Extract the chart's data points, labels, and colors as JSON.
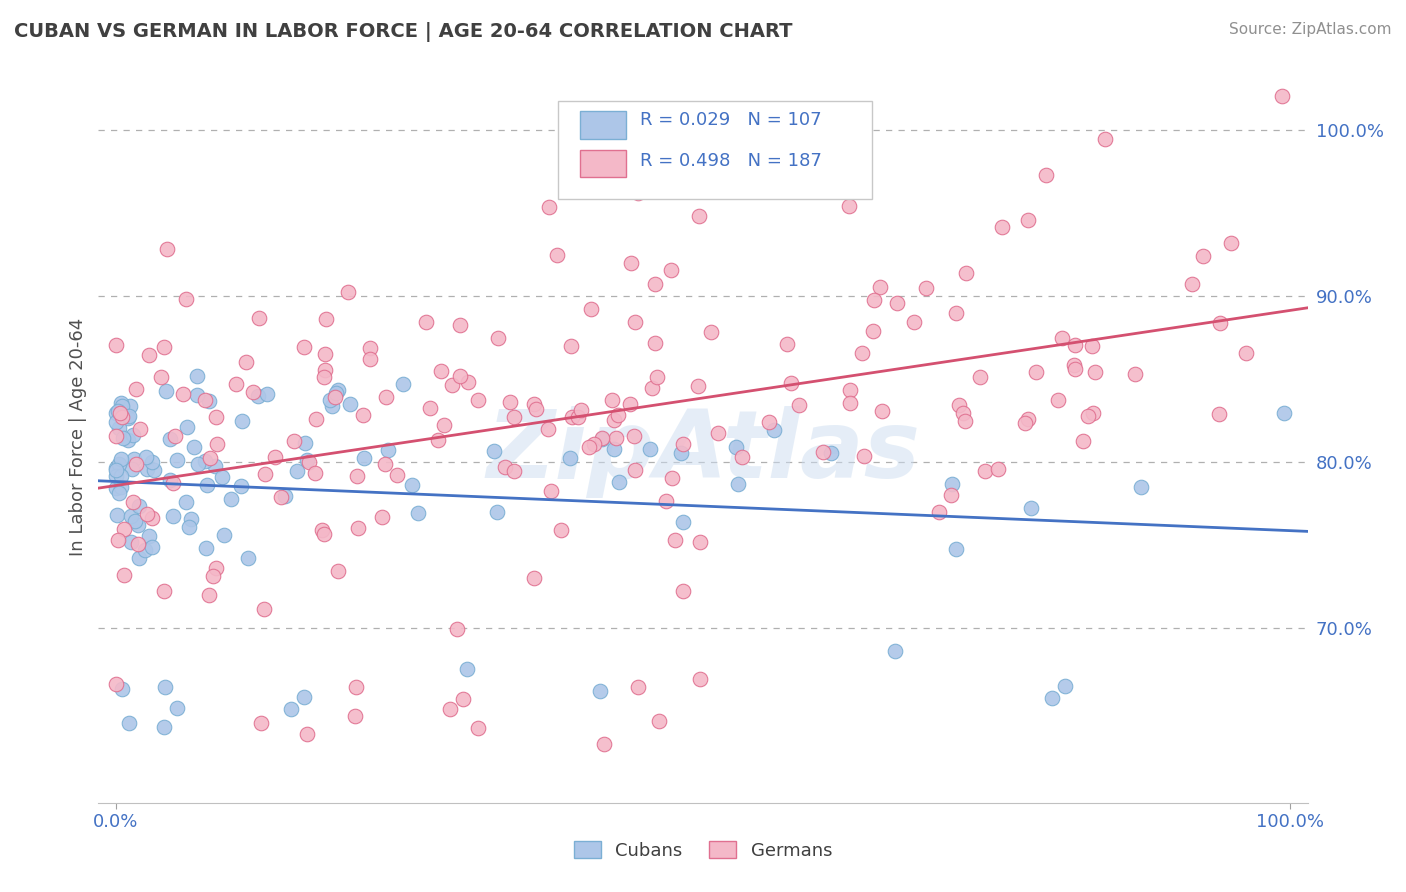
{
  "title": "CUBAN VS GERMAN IN LABOR FORCE | AGE 20-64 CORRELATION CHART",
  "source": "Source: ZipAtlas.com",
  "ylabel": "In Labor Force | Age 20-64",
  "cuban_color": "#adc6e8",
  "cuban_edge_color": "#7bafd4",
  "german_color": "#f4b8c8",
  "german_edge_color": "#e07090",
  "cuban_line_color": "#4472c4",
  "german_line_color": "#d45070",
  "title_color": "#404040",
  "source_color": "#909090",
  "cuban_R": 0.029,
  "cuban_N": 107,
  "german_R": 0.498,
  "german_N": 187,
  "background_color": "#ffffff",
  "grid_color": "#b0b0b0",
  "watermark": "ZipAtlas",
  "seed": 12345,
  "ylim_low": 0.595,
  "ylim_high": 1.035,
  "yticks": [
    0.7,
    0.8,
    0.9,
    1.0
  ]
}
